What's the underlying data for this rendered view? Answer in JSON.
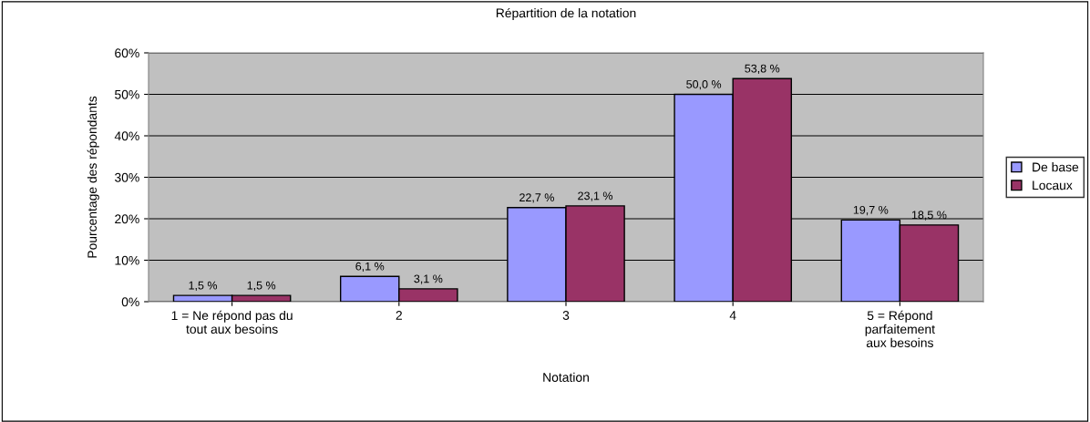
{
  "chart_data": {
    "type": "bar",
    "title": "Répartition de la notation",
    "xlabel": "Notation",
    "ylabel": "Pourcentage des répondants",
    "categories": [
      "1 = Ne répond pas du\ntout aux besoins",
      "2",
      "3",
      "4",
      "5 = Répond\nparfaitement\naux besoins"
    ],
    "series": [
      {
        "name": "De base",
        "color": "#9999ff",
        "values": [
          1.5,
          6.1,
          22.7,
          50.0,
          19.7
        ],
        "value_labels": [
          "1,5 %",
          "6,1 %",
          "22,7 %",
          "50,0 %",
          "19,7 %"
        ]
      },
      {
        "name": "Locaux",
        "color": "#993366",
        "values": [
          1.5,
          3.1,
          23.1,
          53.8,
          18.5
        ],
        "value_labels": [
          "1,5 %",
          "3,1 %",
          "23,1 %",
          "53,8 %",
          "18,5 %"
        ]
      }
    ],
    "ylim": [
      0,
      60
    ],
    "yticks": [
      {
        "value": 0,
        "label": "0%"
      },
      {
        "value": 10,
        "label": "10%"
      },
      {
        "value": 20,
        "label": "20%"
      },
      {
        "value": 30,
        "label": "30%"
      },
      {
        "value": 40,
        "label": "40%"
      },
      {
        "value": 50,
        "label": "50%"
      },
      {
        "value": 60,
        "label": "60%"
      }
    ],
    "grid": "y",
    "legend": "right"
  }
}
